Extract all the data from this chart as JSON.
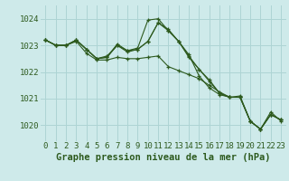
{
  "bg_color": "#ceeaea",
  "grid_color": "#add4d4",
  "line_color": "#2d5a1e",
  "marker_color": "#2d5a1e",
  "xlabel": "Graphe pression niveau de la mer (hPa)",
  "xlabel_fontsize": 7.5,
  "tick_fontsize": 6.5,
  "ytick_labels": [
    1020,
    1021,
    1022,
    1023,
    1024
  ],
  "ylim": [
    1019.4,
    1024.5
  ],
  "xlim": [
    -0.5,
    23.5
  ],
  "xticks": [
    0,
    1,
    2,
    3,
    4,
    5,
    6,
    7,
    8,
    9,
    10,
    11,
    12,
    13,
    14,
    15,
    16,
    17,
    18,
    19,
    20,
    21,
    22,
    23
  ],
  "series": [
    [
      1023.2,
      1023.0,
      1023.0,
      1023.2,
      1022.85,
      1022.5,
      1022.55,
      1023.0,
      1022.75,
      1022.85,
      1023.15,
      1023.85,
      1023.6,
      1023.15,
      1022.55,
      1022.1,
      1021.7,
      1021.2,
      1021.05,
      1021.05,
      1020.15,
      1019.85,
      1020.4,
      1020.2
    ],
    [
      1023.2,
      1023.0,
      1023.0,
      1023.2,
      1022.85,
      1022.5,
      1022.55,
      1023.05,
      1022.8,
      1022.9,
      1023.95,
      1024.0,
      1023.55,
      1023.15,
      1022.65,
      1021.85,
      1021.4,
      1021.15,
      1021.05,
      1021.1,
      1020.15,
      1019.85,
      1020.5,
      1020.15
    ],
    [
      1023.2,
      1023.0,
      1023.0,
      1023.2,
      1022.85,
      1022.5,
      1022.6,
      1023.0,
      1022.8,
      1022.85,
      1023.15,
      1023.85,
      1023.55,
      1023.15,
      1022.6,
      1022.1,
      1021.65,
      1021.2,
      1021.05,
      1021.05,
      1020.15,
      1019.85,
      1020.4,
      1020.2
    ],
    [
      1023.2,
      1023.0,
      1023.0,
      1023.15,
      1022.7,
      1022.45,
      1022.45,
      1022.55,
      1022.5,
      1022.5,
      1022.55,
      1022.6,
      1022.2,
      1022.05,
      1021.9,
      1021.75,
      1021.5,
      1021.25,
      1021.05,
      1021.05,
      1020.15,
      1019.85,
      1020.4,
      1020.2
    ]
  ]
}
